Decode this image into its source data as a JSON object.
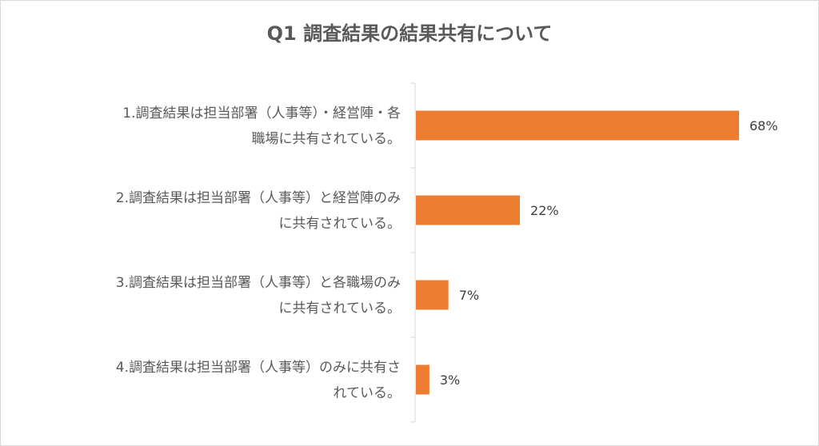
{
  "chart_data": {
    "type": "bar",
    "orientation": "horizontal",
    "title": "Q1 調査結果の結果共有について",
    "categories": [
      [
        "1.調査結果は担当部署（人事等）・経営陣・各",
        "職場に共有されている。"
      ],
      [
        "2.調査結果は担当部署（人事等）と経営陣のみ",
        "に共有されている。"
      ],
      [
        "3.調査結果は担当部署（人事等）と各職場のみ",
        "に共有されている。"
      ],
      [
        "4.調査結果は担当部署（人事等）のみに共有さ",
        "れている。"
      ]
    ],
    "values": [
      68,
      22,
      7,
      3
    ],
    "value_labels": [
      "68%",
      "22%",
      "7%",
      "3%"
    ],
    "xlim": [
      0,
      68
    ],
    "colors": {
      "bar": "#ED7D31",
      "axis": "#D9D9D9"
    }
  }
}
